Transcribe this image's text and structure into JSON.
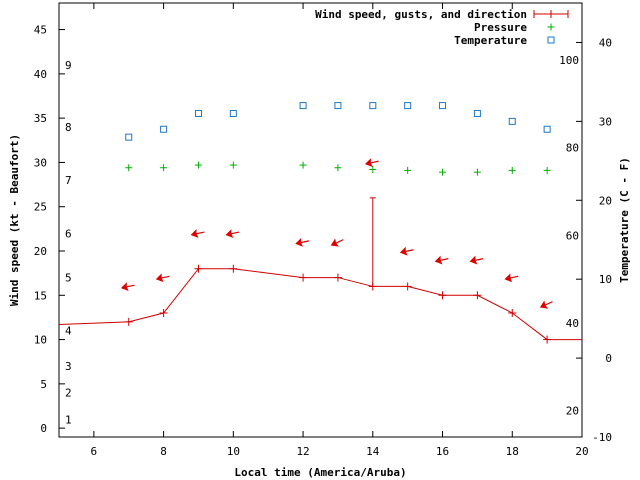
{
  "chart_data": {
    "type": "line",
    "xlabel": "Local time (America/Aruba)",
    "ylabel": "Wind speed (kt - Beaufort)",
    "y2label": "Temperature (C - F)",
    "xlim": [
      5,
      20
    ],
    "ylim": [
      -1,
      48
    ],
    "y2lim": [
      -10,
      45
    ],
    "x_ticks": [
      "6",
      "8",
      "10",
      "12",
      "14",
      "16",
      "18",
      "20"
    ],
    "y_ticks": [
      "0",
      "5",
      "10",
      "15",
      "20",
      "25",
      "30",
      "35",
      "40",
      "45"
    ],
    "y2_ticks": [
      "-10",
      "0",
      "10",
      "20",
      "30",
      "40"
    ],
    "beaufort_labels": [
      {
        "label": "1",
        "y": 1
      },
      {
        "label": "2",
        "y": 4
      },
      {
        "label": "3",
        "y": 7
      },
      {
        "label": "4",
        "y": 11
      },
      {
        "label": "5",
        "y": 17
      },
      {
        "label": "6",
        "y": 22
      },
      {
        "label": "7",
        "y": 28
      },
      {
        "label": "8",
        "y": 34
      },
      {
        "label": "9",
        "y": 41
      }
    ],
    "fahrenheit_labels": [
      {
        "label": "20",
        "y": -6.67
      },
      {
        "label": "40",
        "y": 4.44
      },
      {
        "label": "60",
        "y": 15.56
      },
      {
        "label": "80",
        "y": 26.67
      },
      {
        "label": "100",
        "y": 37.78
      }
    ],
    "legend": {
      "position": "top-right",
      "entries": [
        "Wind speed, gusts, and direction",
        "Pressure",
        "Temperature"
      ]
    },
    "series": [
      {
        "name": "Wind speed, gusts, and direction",
        "color": "#d00000",
        "x": [
          5,
          7,
          8,
          9,
          10,
          12,
          13,
          14,
          15,
          16,
          17,
          18,
          19,
          20
        ],
        "y": [
          11.7,
          12,
          13,
          18,
          18,
          17,
          17,
          16,
          16,
          15,
          15,
          13,
          10,
          10
        ]
      },
      {
        "name": "Pressure",
        "color": "#00b000",
        "x": [
          7,
          8,
          9,
          10,
          12,
          13,
          14,
          15,
          16,
          17,
          18,
          19
        ],
        "y": [
          29.4,
          29.4,
          29.7,
          29.7,
          29.7,
          29.4,
          29.2,
          29.1,
          28.9,
          28.9,
          29.1,
          29.1
        ]
      },
      {
        "name": "Temperature",
        "color": "#1e78c8",
        "axis": "y2",
        "x": [
          7,
          8,
          9,
          10,
          12,
          13,
          14,
          15,
          16,
          17,
          18,
          19
        ],
        "y": [
          28,
          29,
          31,
          31,
          32,
          32,
          32,
          32,
          32,
          31,
          30,
          29
        ]
      }
    ],
    "gusts": [
      {
        "x": 14,
        "y_from": 16,
        "y_to": 26
      }
    ],
    "wind_direction_arrows": {
      "color": "#dd0000",
      "points": [
        {
          "x": 7,
          "y": 16,
          "dir": "from-east"
        },
        {
          "x": 8,
          "y": 17,
          "dir": "from-east"
        },
        {
          "x": 9,
          "y": 22,
          "dir": "from-east"
        },
        {
          "x": 10,
          "y": 22,
          "dir": "from-east"
        },
        {
          "x": 12,
          "y": 21,
          "dir": "from-east"
        },
        {
          "x": 13,
          "y": 21,
          "dir": "from-northeast"
        },
        {
          "x": 14,
          "y": 30,
          "dir": "from-east"
        },
        {
          "x": 15,
          "y": 20,
          "dir": "from-east"
        },
        {
          "x": 16,
          "y": 19,
          "dir": "from-east"
        },
        {
          "x": 17,
          "y": 19,
          "dir": "from-east"
        },
        {
          "x": 18,
          "y": 17,
          "dir": "from-east"
        },
        {
          "x": 19,
          "y": 14,
          "dir": "from-northeast"
        }
      ]
    }
  }
}
